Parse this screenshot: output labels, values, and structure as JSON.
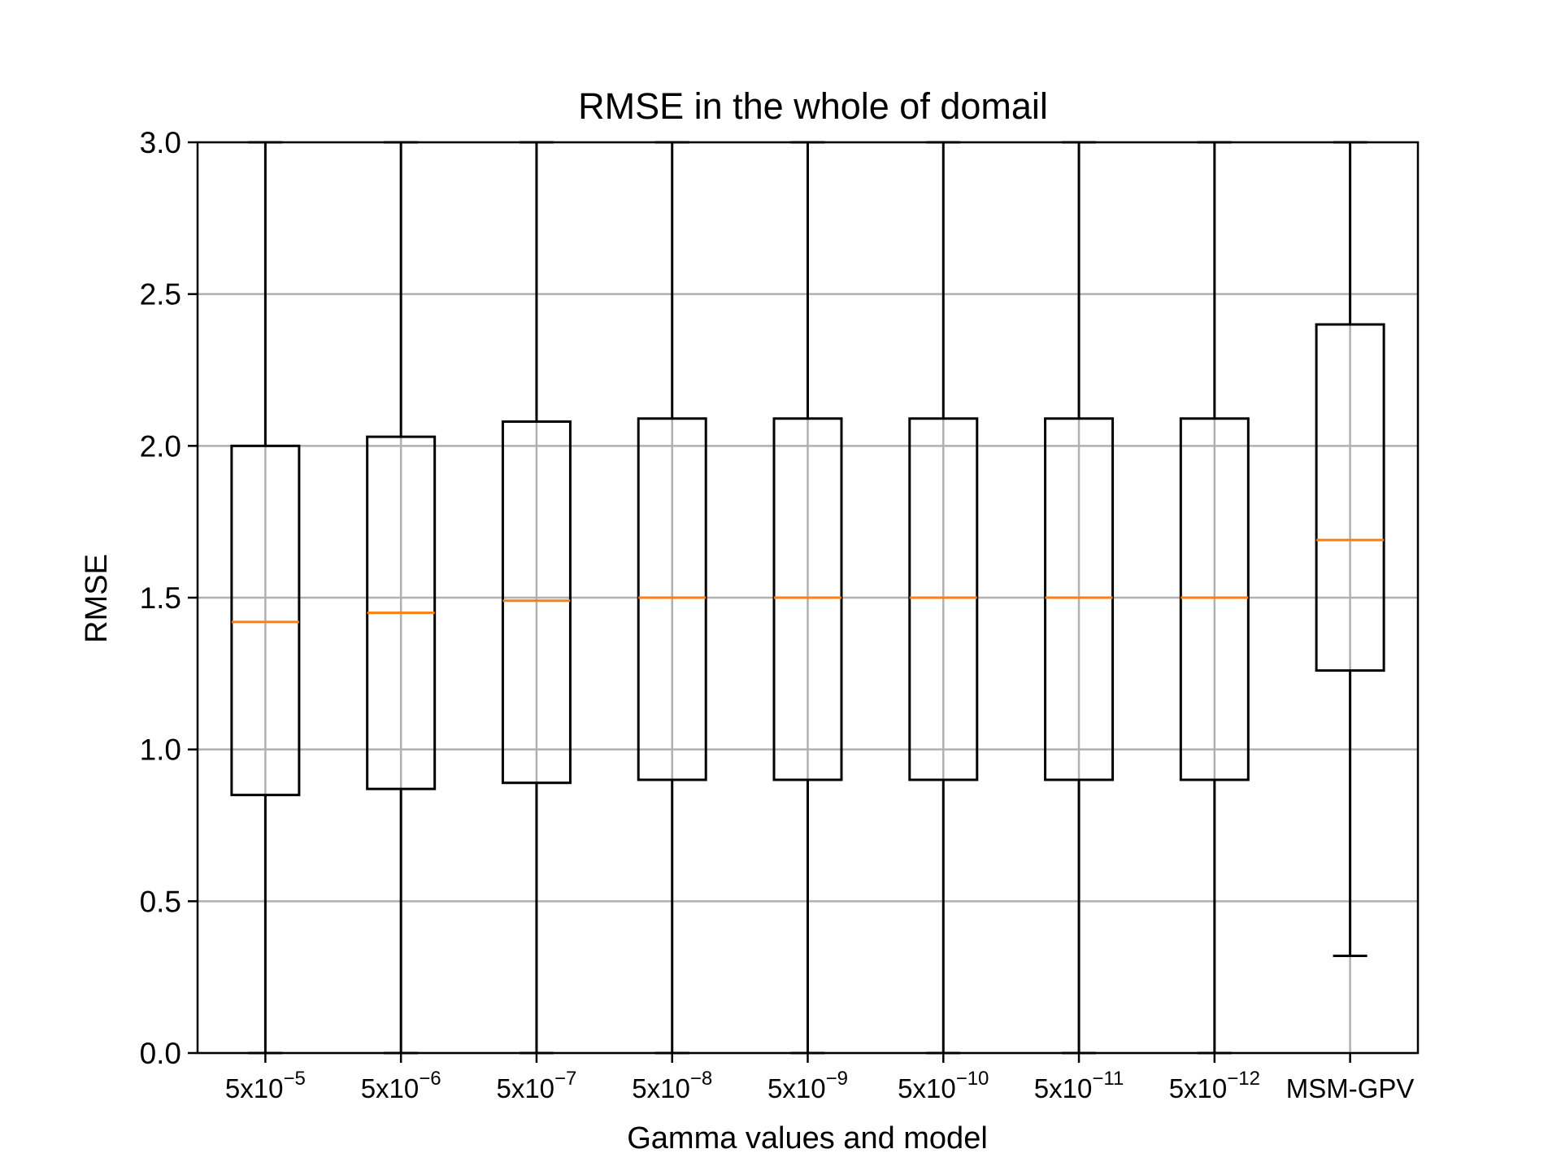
{
  "chart_data": {
    "type": "box",
    "title": "RMSE in the whole of domail",
    "xlabel": "Gamma values and model",
    "ylabel": "RMSE",
    "ylim": [
      0,
      3.0
    ],
    "yticks": [
      "0.0",
      "0.5",
      "1.0",
      "1.5",
      "2.0",
      "2.5",
      "3.0"
    ],
    "grid": true,
    "categories": [
      {
        "base": "5x10",
        "exp": "−5"
      },
      {
        "base": "5x10",
        "exp": "−6"
      },
      {
        "base": "5x10",
        "exp": "−7"
      },
      {
        "base": "5x10",
        "exp": "−8"
      },
      {
        "base": "5x10",
        "exp": "−9"
      },
      {
        "base": "5x10",
        "exp": "−10"
      },
      {
        "base": "5x10",
        "exp": "−11"
      },
      {
        "base": "5x10",
        "exp": "−12"
      },
      {
        "base": "MSM-GPV",
        "exp": ""
      }
    ],
    "boxes": [
      {
        "whisker_low": 0.0,
        "q1": 0.85,
        "median": 1.42,
        "q3": 2.0,
        "whisker_high": 3.0
      },
      {
        "whisker_low": 0.0,
        "q1": 0.87,
        "median": 1.45,
        "q3": 2.03,
        "whisker_high": 3.0
      },
      {
        "whisker_low": 0.0,
        "q1": 0.89,
        "median": 1.49,
        "q3": 2.08,
        "whisker_high": 3.0
      },
      {
        "whisker_low": 0.0,
        "q1": 0.9,
        "median": 1.5,
        "q3": 2.09,
        "whisker_high": 3.0
      },
      {
        "whisker_low": 0.0,
        "q1": 0.9,
        "median": 1.5,
        "q3": 2.09,
        "whisker_high": 3.0
      },
      {
        "whisker_low": 0.0,
        "q1": 0.9,
        "median": 1.5,
        "q3": 2.09,
        "whisker_high": 3.0
      },
      {
        "whisker_low": 0.0,
        "q1": 0.9,
        "median": 1.5,
        "q3": 2.09,
        "whisker_high": 3.0
      },
      {
        "whisker_low": 0.0,
        "q1": 0.9,
        "median": 1.5,
        "q3": 2.09,
        "whisker_high": 3.0
      },
      {
        "whisker_low": 0.32,
        "q1": 1.26,
        "median": 1.69,
        "q3": 2.4,
        "whisker_high": 3.0
      }
    ],
    "colors": {
      "box": "#000000",
      "median": "#ff7f0e",
      "grid": "#b0b0b0"
    }
  }
}
